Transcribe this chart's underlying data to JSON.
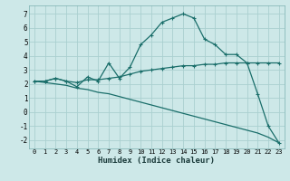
{
  "xlabel": "Humidex (Indice chaleur)",
  "background_color": "#cde8e8",
  "grid_color": "#aad0d0",
  "line_color": "#1a6e6a",
  "xlim": [
    -0.5,
    23.5
  ],
  "ylim": [
    -2.6,
    7.6
  ],
  "xticks": [
    0,
    1,
    2,
    3,
    4,
    5,
    6,
    7,
    8,
    9,
    10,
    11,
    12,
    13,
    14,
    15,
    16,
    17,
    18,
    19,
    20,
    21,
    22,
    23
  ],
  "yticks": [
    -2,
    -1,
    0,
    1,
    2,
    3,
    4,
    5,
    6,
    7
  ],
  "series_main": [
    2.2,
    2.2,
    2.4,
    2.2,
    1.8,
    2.5,
    2.2,
    3.5,
    2.4,
    3.2,
    4.8,
    5.5,
    6.4,
    6.7,
    7.0,
    6.7,
    5.2,
    4.8,
    4.1,
    4.1,
    3.5,
    1.3,
    -1.0,
    -2.2
  ],
  "series_flat": [
    2.2,
    2.2,
    2.4,
    2.2,
    2.1,
    2.3,
    2.3,
    2.4,
    2.5,
    2.7,
    2.9,
    3.0,
    3.1,
    3.2,
    3.3,
    3.3,
    3.4,
    3.4,
    3.5,
    3.5,
    3.5,
    3.5,
    3.5,
    3.5
  ],
  "series_diag": [
    2.2,
    2.1,
    2.0,
    1.9,
    1.7,
    1.6,
    1.4,
    1.3,
    1.1,
    0.9,
    0.7,
    0.5,
    0.3,
    0.1,
    -0.1,
    -0.3,
    -0.5,
    -0.7,
    -0.9,
    -1.1,
    -1.3,
    -1.5,
    -1.8,
    -2.2
  ]
}
